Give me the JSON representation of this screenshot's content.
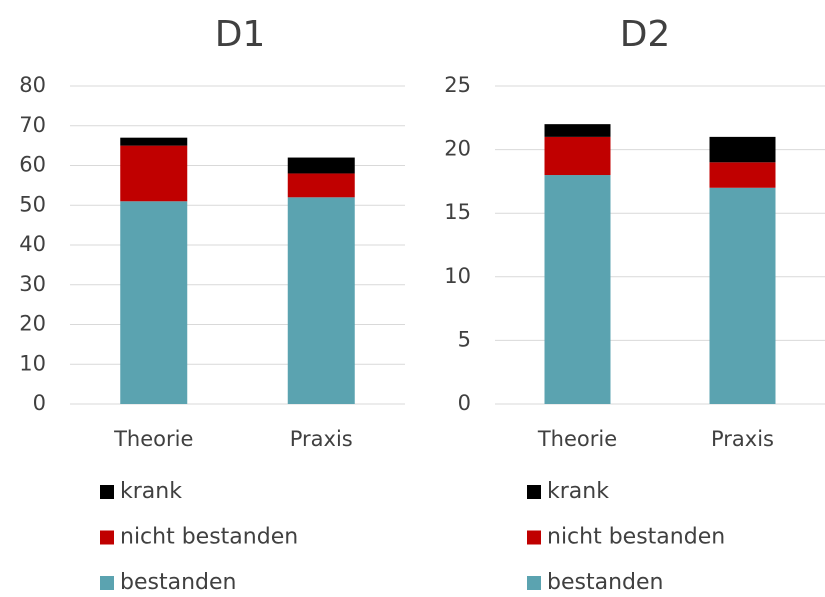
{
  "chart_data": [
    {
      "type": "stacked_bar",
      "title": "D1",
      "categories": [
        "Theorie",
        "Praxis"
      ],
      "series": [
        {
          "name": "bestanden",
          "color": "#5ba3b0",
          "values": [
            51,
            52
          ]
        },
        {
          "name": "nicht bestanden",
          "color": "#c00000",
          "values": [
            14,
            6
          ]
        },
        {
          "name": "krank",
          "color": "#000000",
          "values": [
            2,
            4
          ]
        }
      ],
      "ylim": [
        0,
        80
      ],
      "yticks": [
        0,
        10,
        20,
        30,
        40,
        50,
        60,
        70,
        80
      ],
      "grid": true,
      "legend": "bottom"
    },
    {
      "type": "stacked_bar",
      "title": "D2",
      "categories": [
        "Theorie",
        "Praxis"
      ],
      "series": [
        {
          "name": "bestanden",
          "color": "#5ba3b0",
          "values": [
            18,
            17
          ]
        },
        {
          "name": "nicht bestanden",
          "color": "#c00000",
          "values": [
            3,
            2
          ]
        },
        {
          "name": "krank",
          "color": "#000000",
          "values": [
            1,
            2
          ]
        }
      ],
      "ylim": [
        0,
        25
      ],
      "yticks": [
        0,
        5,
        10,
        15,
        20,
        25
      ],
      "grid": true,
      "legend": "bottom"
    }
  ]
}
